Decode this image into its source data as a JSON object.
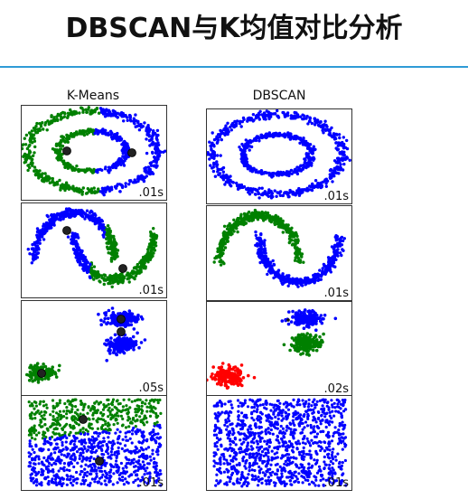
{
  "slide": {
    "title": "DBSCAN与K均值对比分析"
  },
  "colors": {
    "accent_rule": "#2f9bd6",
    "blue": "#0000ff",
    "green": "#008000",
    "red": "#ff0000",
    "center": "#222222"
  },
  "columns": [
    {
      "title": "K-Means",
      "panels": [
        {
          "dataset": "circles",
          "time": ".01s"
        },
        {
          "dataset": "moons",
          "time": ".01s"
        },
        {
          "dataset": "blobs",
          "time": ".05s"
        },
        {
          "dataset": "uniform",
          "time": ".01s"
        }
      ]
    },
    {
      "title": "DBSCAN",
      "panels": [
        {
          "dataset": "circles",
          "time": ".01s"
        },
        {
          "dataset": "moons",
          "time": ".01s"
        },
        {
          "dataset": "blobs",
          "time": ".02s"
        },
        {
          "dataset": "uniform",
          "time": ".01s"
        }
      ]
    }
  ]
}
